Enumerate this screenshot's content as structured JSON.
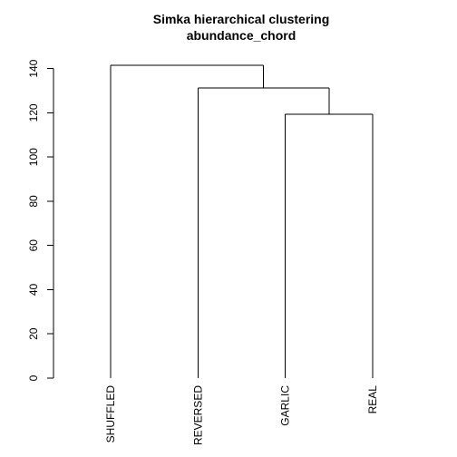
{
  "chart_data": {
    "type": "dendrogram",
    "title": "Simka hierarchical clustering",
    "subtitle": "abundance_chord",
    "xlabel": "",
    "ylabel": "",
    "ylim": [
      0,
      141.5
    ],
    "yticks": [
      0,
      20,
      40,
      60,
      80,
      100,
      120,
      140
    ],
    "leaves": [
      "SHUFFLED",
      "REVERSED",
      "GARLIC",
      "REAL"
    ],
    "merges": [
      {
        "left": [
          "leaf",
          2
        ],
        "right": [
          "leaf",
          3
        ],
        "height": 119.3
      },
      {
        "left": [
          "leaf",
          1
        ],
        "right": [
          "merge",
          0
        ],
        "height": 131.3
      },
      {
        "left": [
          "leaf",
          0
        ],
        "right": [
          "merge",
          1
        ],
        "height": 141.5
      }
    ],
    "line_color": "#000000"
  }
}
